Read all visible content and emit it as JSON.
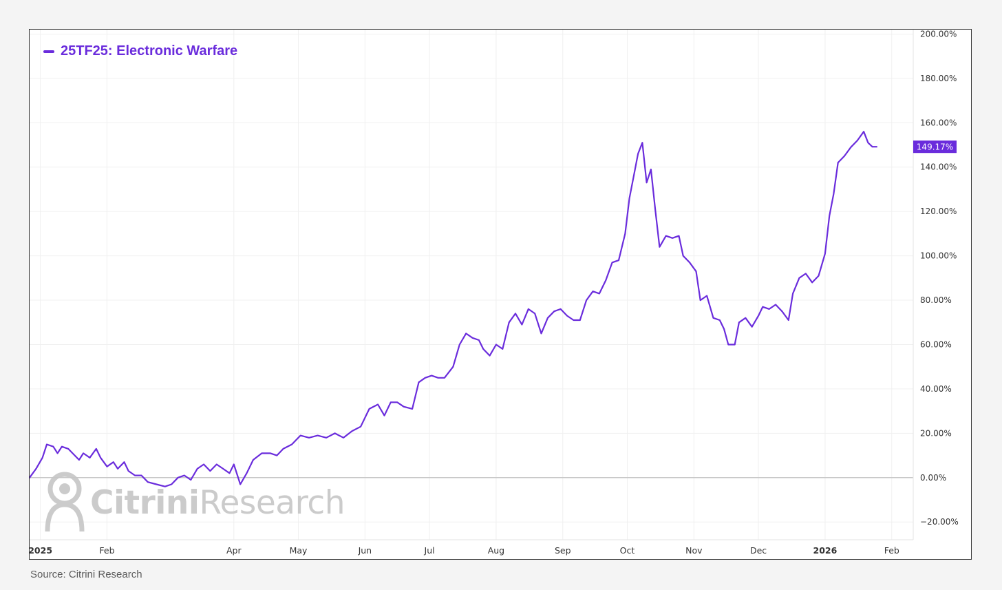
{
  "source": "Source: Citrini Research",
  "watermark": {
    "bold": "Citrini",
    "rest": "Research"
  },
  "colors": {
    "series": "#6a2cdc",
    "grid": "#f0f0f0",
    "zero_line": "#c8c8c8",
    "axis_text": "#333333"
  },
  "chart_data": {
    "type": "line",
    "title": "",
    "xlabel": "",
    "ylabel": "",
    "x_range": [
      "2024-12-27",
      "2026-02-11"
    ],
    "ylim": [
      -28,
      202
    ],
    "grid": true,
    "legend_position": "top-left",
    "y_ticks": [
      {
        "value": 200,
        "label": "200.00%"
      },
      {
        "value": 180,
        "label": "180.00%"
      },
      {
        "value": 160,
        "label": "160.00%"
      },
      {
        "value": 140,
        "label": "140.00%"
      },
      {
        "value": 120,
        "label": "120.00%"
      },
      {
        "value": 100,
        "label": "100.00%"
      },
      {
        "value": 80,
        "label": "80.00%"
      },
      {
        "value": 60,
        "label": "60.00%"
      },
      {
        "value": 40,
        "label": "40.00%"
      },
      {
        "value": 20,
        "label": "20.00%"
      },
      {
        "value": 0,
        "label": "0.00%"
      },
      {
        "value": -20,
        "label": "−20.00%"
      }
    ],
    "x_ticks": [
      {
        "date": "2025-01-01",
        "label": "2025",
        "bold": true
      },
      {
        "date": "2025-02-01",
        "label": "Feb",
        "bold": false
      },
      {
        "date": "2025-04-01",
        "label": "Apr",
        "bold": false
      },
      {
        "date": "2025-05-01",
        "label": "May",
        "bold": false
      },
      {
        "date": "2025-06-01",
        "label": "Jun",
        "bold": false
      },
      {
        "date": "2025-07-01",
        "label": "Jul",
        "bold": false
      },
      {
        "date": "2025-08-01",
        "label": "Aug",
        "bold": false
      },
      {
        "date": "2025-09-01",
        "label": "Sep",
        "bold": false
      },
      {
        "date": "2025-10-01",
        "label": "Oct",
        "bold": false
      },
      {
        "date": "2025-11-01",
        "label": "Nov",
        "bold": false
      },
      {
        "date": "2025-12-01",
        "label": "Dec",
        "bold": false
      },
      {
        "date": "2026-01-01",
        "label": "2026",
        "bold": true
      },
      {
        "date": "2026-02-01",
        "label": "Feb",
        "bold": false
      }
    ],
    "last_value_label": "149.17%",
    "series": [
      {
        "name": "25TF25: Electronic Warfare",
        "color": "#6a2cdc",
        "points": [
          [
            "2024-12-27",
            0
          ],
          [
            "2024-12-30",
            4
          ],
          [
            "2025-01-02",
            9
          ],
          [
            "2025-01-04",
            15
          ],
          [
            "2025-01-07",
            14
          ],
          [
            "2025-01-09",
            11
          ],
          [
            "2025-01-11",
            14
          ],
          [
            "2025-01-14",
            13
          ],
          [
            "2025-01-16",
            11
          ],
          [
            "2025-01-19",
            8
          ],
          [
            "2025-01-21",
            11
          ],
          [
            "2025-01-24",
            9
          ],
          [
            "2025-01-27",
            13
          ],
          [
            "2025-01-29",
            9
          ],
          [
            "2025-02-01",
            5
          ],
          [
            "2025-02-04",
            7
          ],
          [
            "2025-02-06",
            4
          ],
          [
            "2025-02-09",
            7
          ],
          [
            "2025-02-11",
            3
          ],
          [
            "2025-02-14",
            1
          ],
          [
            "2025-02-17",
            1
          ],
          [
            "2025-02-20",
            -2
          ],
          [
            "2025-02-24",
            -3
          ],
          [
            "2025-02-28",
            -4
          ],
          [
            "2025-03-03",
            -3
          ],
          [
            "2025-03-06",
            0
          ],
          [
            "2025-03-09",
            1
          ],
          [
            "2025-03-12",
            -1
          ],
          [
            "2025-03-15",
            4
          ],
          [
            "2025-03-18",
            6
          ],
          [
            "2025-03-21",
            3
          ],
          [
            "2025-03-24",
            6
          ],
          [
            "2025-03-27",
            4
          ],
          [
            "2025-03-30",
            2
          ],
          [
            "2025-04-01",
            6
          ],
          [
            "2025-04-04",
            -3
          ],
          [
            "2025-04-07",
            2
          ],
          [
            "2025-04-10",
            8
          ],
          [
            "2025-04-14",
            11
          ],
          [
            "2025-04-18",
            11
          ],
          [
            "2025-04-21",
            10
          ],
          [
            "2025-04-24",
            13
          ],
          [
            "2025-04-28",
            15
          ],
          [
            "2025-05-02",
            19
          ],
          [
            "2025-05-06",
            18
          ],
          [
            "2025-05-10",
            19
          ],
          [
            "2025-05-14",
            18
          ],
          [
            "2025-05-18",
            20
          ],
          [
            "2025-05-22",
            18
          ],
          [
            "2025-05-26",
            21
          ],
          [
            "2025-05-30",
            23
          ],
          [
            "2025-06-03",
            31
          ],
          [
            "2025-06-07",
            33
          ],
          [
            "2025-06-10",
            28
          ],
          [
            "2025-06-13",
            34
          ],
          [
            "2025-06-16",
            34
          ],
          [
            "2025-06-19",
            32
          ],
          [
            "2025-06-23",
            31
          ],
          [
            "2025-06-26",
            43
          ],
          [
            "2025-06-29",
            45
          ],
          [
            "2025-07-02",
            46
          ],
          [
            "2025-07-05",
            45
          ],
          [
            "2025-07-08",
            45
          ],
          [
            "2025-07-12",
            50
          ],
          [
            "2025-07-15",
            60
          ],
          [
            "2025-07-18",
            65
          ],
          [
            "2025-07-21",
            63
          ],
          [
            "2025-07-24",
            62
          ],
          [
            "2025-07-26",
            58
          ],
          [
            "2025-07-29",
            55
          ],
          [
            "2025-08-01",
            60
          ],
          [
            "2025-08-04",
            58
          ],
          [
            "2025-08-07",
            70
          ],
          [
            "2025-08-10",
            74
          ],
          [
            "2025-08-13",
            69
          ],
          [
            "2025-08-16",
            76
          ],
          [
            "2025-08-19",
            74
          ],
          [
            "2025-08-22",
            65
          ],
          [
            "2025-08-25",
            72
          ],
          [
            "2025-08-28",
            75
          ],
          [
            "2025-08-31",
            76
          ],
          [
            "2025-09-03",
            73
          ],
          [
            "2025-09-06",
            71
          ],
          [
            "2025-09-09",
            71
          ],
          [
            "2025-09-12",
            80
          ],
          [
            "2025-09-15",
            84
          ],
          [
            "2025-09-18",
            83
          ],
          [
            "2025-09-21",
            89
          ],
          [
            "2025-09-24",
            97
          ],
          [
            "2025-09-27",
            98
          ],
          [
            "2025-09-30",
            110
          ],
          [
            "2025-10-02",
            126
          ],
          [
            "2025-10-04",
            136
          ],
          [
            "2025-10-06",
            146
          ],
          [
            "2025-10-08",
            151
          ],
          [
            "2025-10-10",
            133
          ],
          [
            "2025-10-12",
            139
          ],
          [
            "2025-10-14",
            121
          ],
          [
            "2025-10-16",
            104
          ],
          [
            "2025-10-19",
            109
          ],
          [
            "2025-10-22",
            108
          ],
          [
            "2025-10-25",
            109
          ],
          [
            "2025-10-27",
            100
          ],
          [
            "2025-10-30",
            97
          ],
          [
            "2025-11-02",
            93
          ],
          [
            "2025-11-04",
            80
          ],
          [
            "2025-11-07",
            82
          ],
          [
            "2025-11-10",
            72
          ],
          [
            "2025-11-13",
            71
          ],
          [
            "2025-11-15",
            67
          ],
          [
            "2025-11-17",
            60
          ],
          [
            "2025-11-20",
            60
          ],
          [
            "2025-11-22",
            70
          ],
          [
            "2025-11-25",
            72
          ],
          [
            "2025-11-28",
            68
          ],
          [
            "2025-12-01",
            73
          ],
          [
            "2025-12-03",
            77
          ],
          [
            "2025-12-06",
            76
          ],
          [
            "2025-12-09",
            78
          ],
          [
            "2025-12-12",
            75
          ],
          [
            "2025-12-15",
            71
          ],
          [
            "2025-12-17",
            83
          ],
          [
            "2025-12-20",
            90
          ],
          [
            "2025-12-23",
            92
          ],
          [
            "2025-12-26",
            88
          ],
          [
            "2025-12-29",
            91
          ],
          [
            "2026-01-01",
            101
          ],
          [
            "2026-01-03",
            118
          ],
          [
            "2026-01-05",
            128
          ],
          [
            "2026-01-07",
            142
          ],
          [
            "2026-01-10",
            145
          ],
          [
            "2026-01-13",
            149
          ],
          [
            "2026-01-16",
            152
          ],
          [
            "2026-01-19",
            156
          ],
          [
            "2026-01-21",
            151
          ],
          [
            "2026-01-23",
            149.17
          ],
          [
            "2026-01-25",
            149.17
          ]
        ]
      }
    ]
  }
}
